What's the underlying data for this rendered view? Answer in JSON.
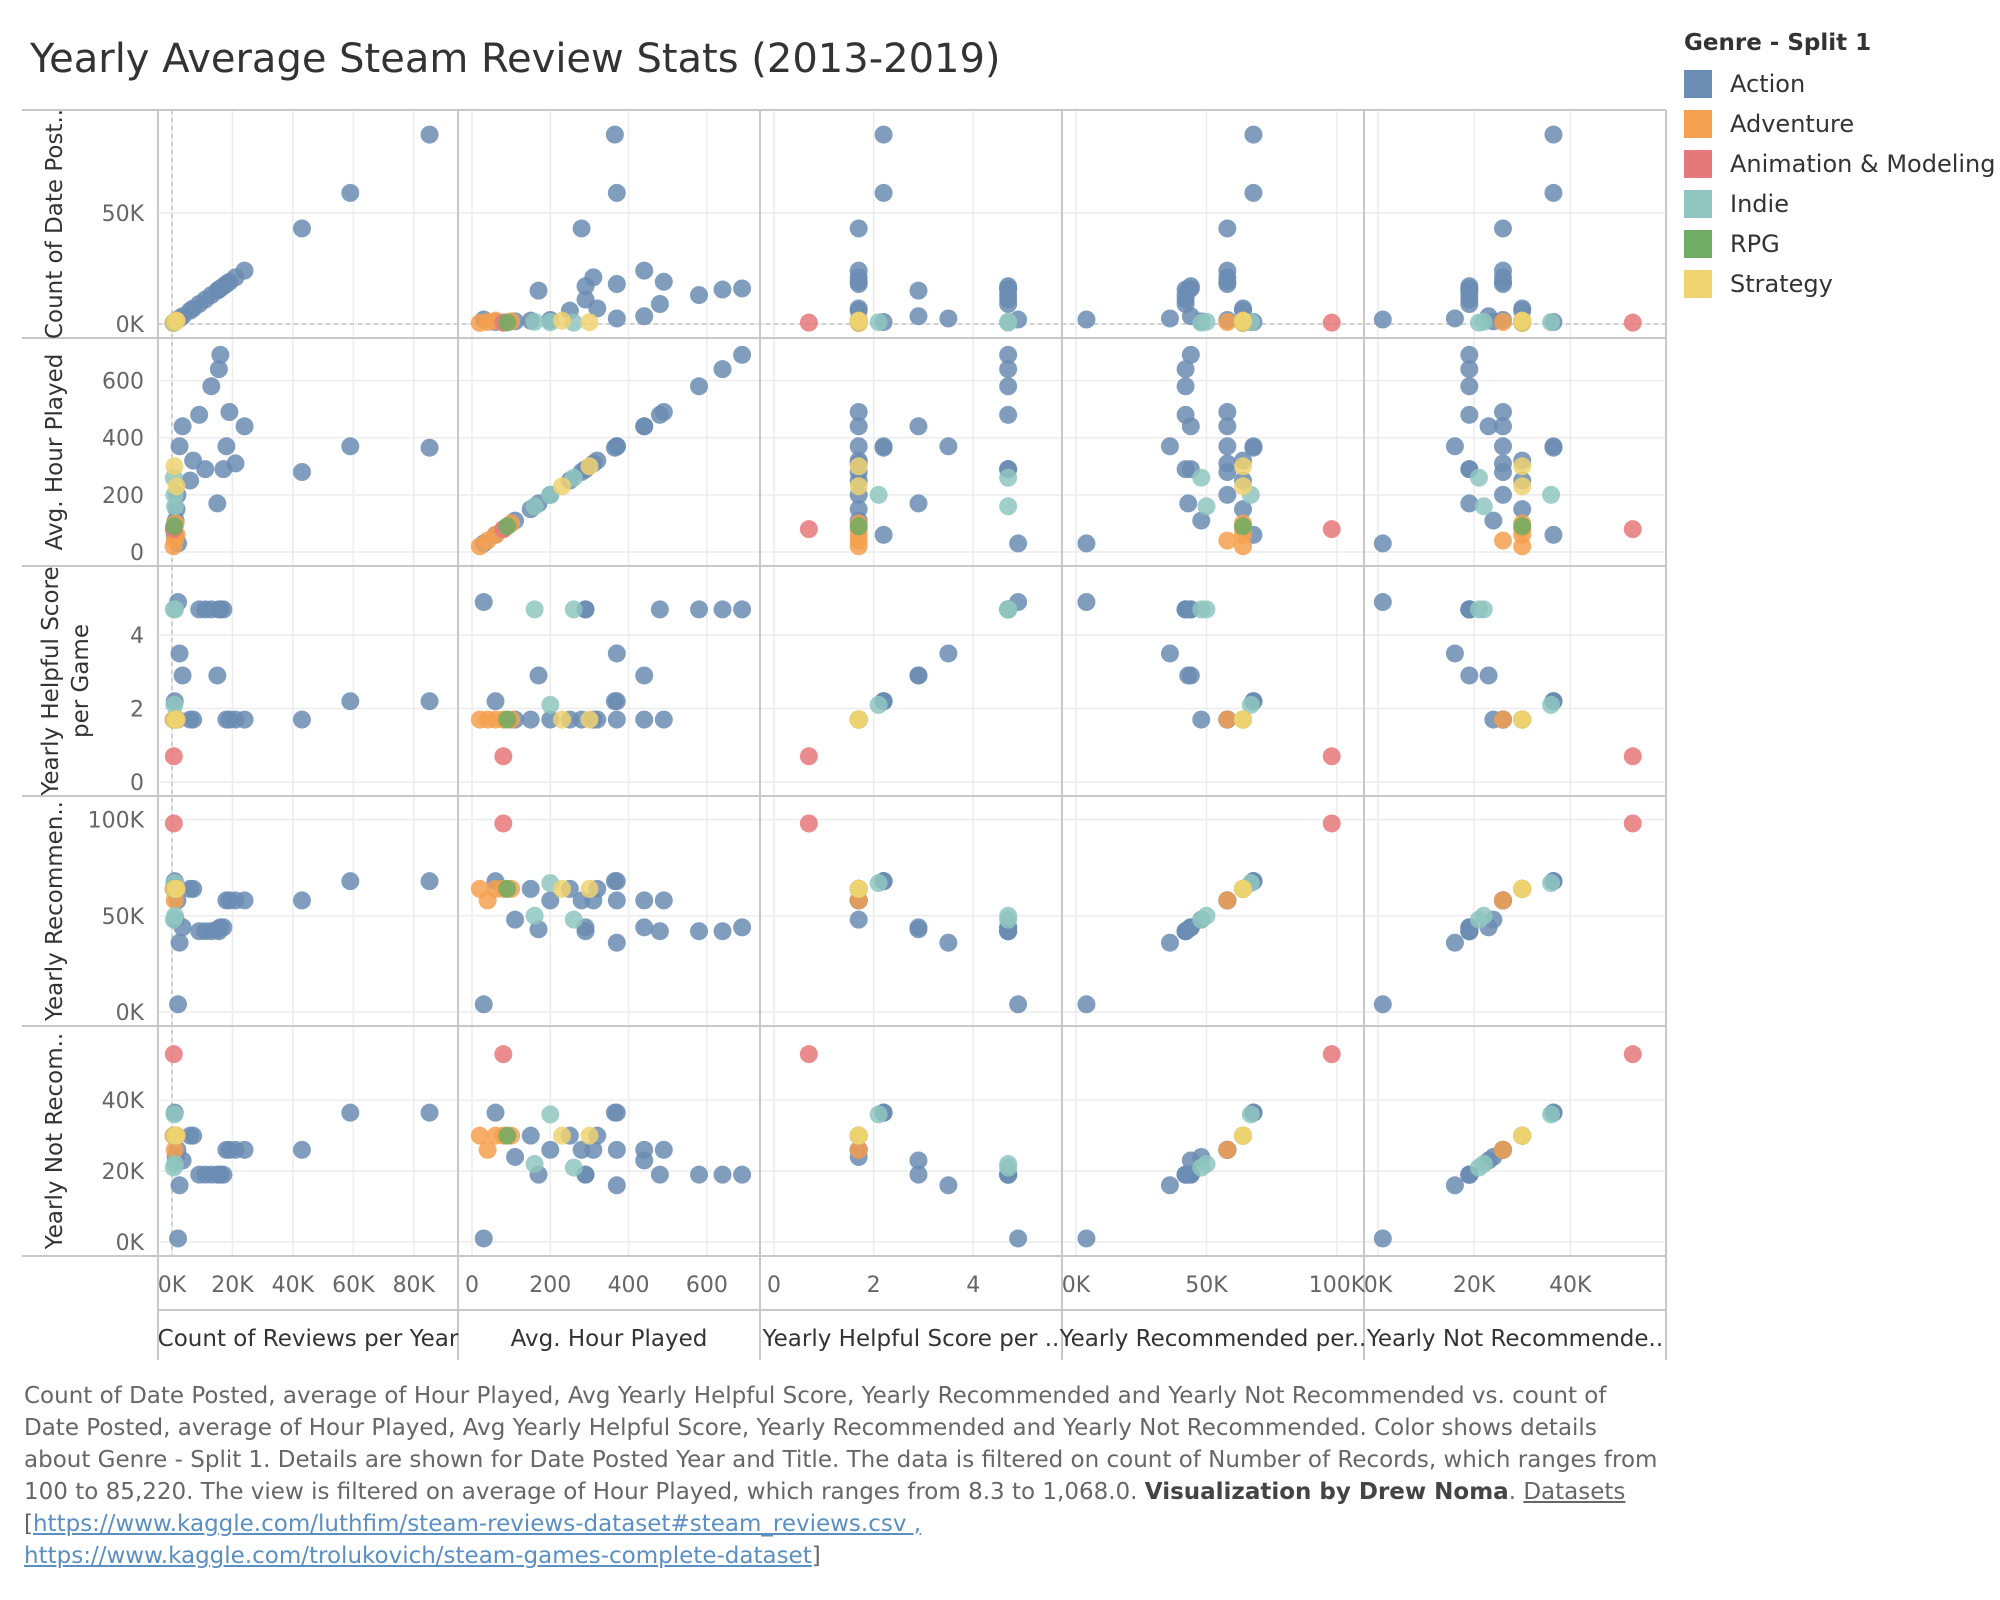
{
  "title": "Yearly Average Steam Review Stats (2013-2019)",
  "legend": {
    "title": "Genre - Split 1",
    "items": [
      {
        "label": "Action",
        "color": "#6b8cb3"
      },
      {
        "label": "Adventure",
        "color": "#f5a04e"
      },
      {
        "label": "Animation & Modeling",
        "color": "#e6787a"
      },
      {
        "label": "Indie",
        "color": "#8fc6bf"
      },
      {
        "label": "RPG",
        "color": "#6fad64"
      },
      {
        "label": "Strategy",
        "color": "#f0d271"
      }
    ]
  },
  "caption": {
    "text": "Count of Date Posted, average of Hour Played, Avg Yearly Helpful Score, Yearly Recommended and Yearly Not Recommended vs. count of Date Posted, average of Hour Played, Avg Yearly Helpful Score, Yearly Recommended and Yearly Not Recommended.  Color shows details about Genre - Split 1.  Details are shown for Date Posted Year and Title. The data is filtered on count of Number of Records, which ranges from 100 to 85,220. The view is filtered on average of Hour Played, which ranges from 8.3 to 1,068.0.",
    "credit": "Visualization by Drew Noma",
    "datasets_label": "Datasets",
    "link_open": "[",
    "link1": "https://www.kaggle.com/luthfim/steam-reviews-dataset#steam_reviews.csv ,",
    "link2": "https://www.kaggle.com/trolukovich/steam-games-complete-dataset",
    "link_close": "]"
  },
  "chart_data": {
    "type": "scatter",
    "title": "Yearly Average Steam Review Stats (2013-2019)",
    "layout": "scatter-matrix",
    "variables": [
      {
        "key": "count",
        "label": "Count of Date Post..",
        "xlabel": "Count of Reviews per Year",
        "range": [
          0,
          90000
        ],
        "row_ticks": [
          0,
          50000
        ],
        "row_tick_labels": [
          "0K",
          "50K"
        ],
        "col_ticks": [
          0,
          20000,
          40000,
          60000,
          80000
        ],
        "col_tick_labels": [
          "0K",
          "20K",
          "40K",
          "60K",
          "80K"
        ]
      },
      {
        "key": "hours",
        "label": "Avg. Hour Played",
        "xlabel": "Avg. Hour Played",
        "range": [
          0,
          700
        ],
        "row_ticks": [
          0,
          200,
          400,
          600
        ],
        "row_tick_labels": [
          "0",
          "200",
          "400",
          "600"
        ],
        "col_ticks": [
          0,
          200,
          400,
          600
        ],
        "col_tick_labels": [
          "0",
          "200",
          "400",
          "600"
        ]
      },
      {
        "key": "helpful",
        "label": "Yearly Helpful Score per Game",
        "xlabel": "Yearly Helpful Score per ..",
        "range": [
          0,
          5.5
        ],
        "row_ticks": [
          0,
          2,
          4
        ],
        "row_tick_labels": [
          "0",
          "2",
          "4"
        ],
        "col_ticks": [
          0,
          2,
          4
        ],
        "col_tick_labels": [
          "0",
          "2",
          "4"
        ]
      },
      {
        "key": "recommended",
        "label": "Yearly Recommen..",
        "xlabel": "Yearly Recommended per..",
        "range": [
          0,
          105000
        ],
        "row_ticks": [
          0,
          50000,
          100000
        ],
        "row_tick_labels": [
          "0K",
          "50K",
          "100K"
        ],
        "col_ticks": [
          0,
          50000,
          100000
        ],
        "col_tick_labels": [
          "0K",
          "50K",
          "100K"
        ]
      },
      {
        "key": "not_recommended",
        "label": "Yearly Not Recom..",
        "xlabel": "Yearly Not Recommende..",
        "range": [
          0,
          57000
        ],
        "row_ticks": [
          0,
          20000,
          40000
        ],
        "row_tick_labels": [
          "0K",
          "20K",
          "40K"
        ],
        "col_ticks": [
          0,
          20000,
          40000
        ],
        "col_tick_labels": [
          "0K",
          "20K",
          "40K"
        ]
      }
    ],
    "grid": true,
    "legend_position": "top-right",
    "points": [
      {
        "genre": "Action",
        "count": 85220,
        "hours": 365,
        "helpful": 2.2,
        "recommended": 68000,
        "not_recommended": 36500
      },
      {
        "genre": "Action",
        "count": 59000,
        "hours": 370,
        "helpful": 2.2,
        "recommended": 68000,
        "not_recommended": 36500
      },
      {
        "genre": "Action",
        "count": 43000,
        "hours": 280,
        "helpful": 1.7,
        "recommended": 58000,
        "not_recommended": 26000
      },
      {
        "genre": "Action",
        "count": 24000,
        "hours": 440,
        "helpful": 1.7,
        "recommended": 58000,
        "not_recommended": 26000
      },
      {
        "genre": "Action",
        "count": 21000,
        "hours": 310,
        "helpful": 1.7,
        "recommended": 58000,
        "not_recommended": 26000
      },
      {
        "genre": "Action",
        "count": 19000,
        "hours": 490,
        "helpful": 1.7,
        "recommended": 58000,
        "not_recommended": 26000
      },
      {
        "genre": "Action",
        "count": 18000,
        "hours": 370,
        "helpful": 1.7,
        "recommended": 58000,
        "not_recommended": 26000
      },
      {
        "genre": "Action",
        "count": 17000,
        "hours": 290,
        "helpful": 4.7,
        "recommended": 44000,
        "not_recommended": 19000
      },
      {
        "genre": "Action",
        "count": 16000,
        "hours": 690,
        "helpful": 4.7,
        "recommended": 44000,
        "not_recommended": 19000
      },
      {
        "genre": "Action",
        "count": 15500,
        "hours": 640,
        "helpful": 4.7,
        "recommended": 42000,
        "not_recommended": 19000
      },
      {
        "genre": "Action",
        "count": 15000,
        "hours": 170,
        "helpful": 2.9,
        "recommended": 43000,
        "not_recommended": 19000
      },
      {
        "genre": "Action",
        "count": 13000,
        "hours": 580,
        "helpful": 4.7,
        "recommended": 42000,
        "not_recommended": 19000
      },
      {
        "genre": "Action",
        "count": 11000,
        "hours": 290,
        "helpful": 4.7,
        "recommended": 42000,
        "not_recommended": 19000
      },
      {
        "genre": "Action",
        "count": 9000,
        "hours": 480,
        "helpful": 4.7,
        "recommended": 42000,
        "not_recommended": 19000
      },
      {
        "genre": "Action",
        "count": 7000,
        "hours": 320,
        "helpful": 1.7,
        "recommended": 64000,
        "not_recommended": 30000
      },
      {
        "genre": "Action",
        "count": 6000,
        "hours": 250,
        "helpful": 1.7,
        "recommended": 64000,
        "not_recommended": 30000
      },
      {
        "genre": "Action",
        "count": 3500,
        "hours": 440,
        "helpful": 2.9,
        "recommended": 44000,
        "not_recommended": 23000
      },
      {
        "genre": "Action",
        "count": 2500,
        "hours": 370,
        "helpful": 3.5,
        "recommended": 36000,
        "not_recommended": 16000
      },
      {
        "genre": "Action",
        "count": 2000,
        "hours": 30,
        "helpful": 4.9,
        "recommended": 4000,
        "not_recommended": 1000
      },
      {
        "genre": "Action",
        "count": 1800,
        "hours": 200,
        "helpful": 1.7,
        "recommended": 58000,
        "not_recommended": 26000
      },
      {
        "genre": "Action",
        "count": 1500,
        "hours": 150,
        "helpful": 1.7,
        "recommended": 64000,
        "not_recommended": 30000
      },
      {
        "genre": "Action",
        "count": 1200,
        "hours": 110,
        "helpful": 1.7,
        "recommended": 48000,
        "not_recommended": 24000
      },
      {
        "genre": "Action",
        "count": 900,
        "hours": 60,
        "helpful": 2.2,
        "recommended": 68000,
        "not_recommended": 36500
      },
      {
        "genre": "Adventure",
        "count": 1500,
        "hours": 60,
        "helpful": 1.7,
        "recommended": 64000,
        "not_recommended": 30000
      },
      {
        "genre": "Adventure",
        "count": 1200,
        "hours": 100,
        "helpful": 1.7,
        "recommended": 64000,
        "not_recommended": 30000
      },
      {
        "genre": "Adventure",
        "count": 900,
        "hours": 40,
        "helpful": 1.7,
        "recommended": 58000,
        "not_recommended": 26000
      },
      {
        "genre": "Adventure",
        "count": 700,
        "hours": 80,
        "helpful": 1.7,
        "recommended": 64000,
        "not_recommended": 30000
      },
      {
        "genre": "Adventure",
        "count": 500,
        "hours": 20,
        "helpful": 1.7,
        "recommended": 64000,
        "not_recommended": 30000
      },
      {
        "genre": "Animation & Modeling",
        "count": 600,
        "hours": 80,
        "helpful": 0.7,
        "recommended": 98000,
        "not_recommended": 53000
      },
      {
        "genre": "Indie",
        "count": 1000,
        "hours": 160,
        "helpful": 4.7,
        "recommended": 50000,
        "not_recommended": 22000
      },
      {
        "genre": "Indie",
        "count": 800,
        "hours": 200,
        "helpful": 2.1,
        "recommended": 67000,
        "not_recommended": 36000
      },
      {
        "genre": "Indie",
        "count": 600,
        "hours": 260,
        "helpful": 4.7,
        "recommended": 48000,
        "not_recommended": 21000
      },
      {
        "genre": "RPG",
        "count": 700,
        "hours": 90,
        "helpful": 1.7,
        "recommended": 64000,
        "not_recommended": 30000
      },
      {
        "genre": "Strategy",
        "count": 1500,
        "hours": 230,
        "helpful": 1.7,
        "recommended": 64000,
        "not_recommended": 30000
      },
      {
        "genre": "Strategy",
        "count": 800,
        "hours": 300,
        "helpful": 1.7,
        "recommended": 64000,
        "not_recommended": 30000
      }
    ]
  }
}
